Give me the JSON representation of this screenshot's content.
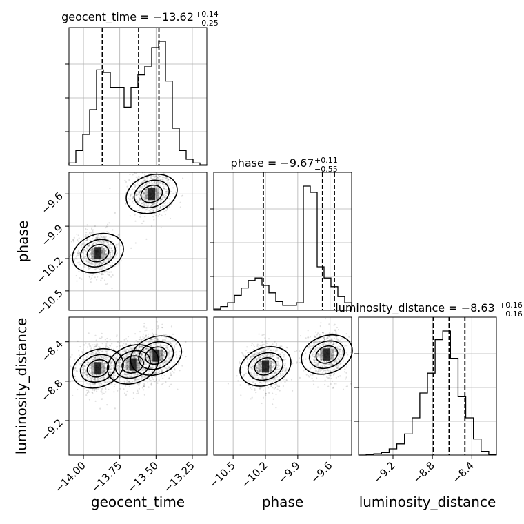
{
  "chart_data": {
    "type": "corner",
    "parameters": [
      {
        "name": "geocent_time",
        "title_main": "geocent_time = −13.62",
        "title_sup": "+0.14",
        "title_sub": "−0.25",
        "range": [
          -14.1,
          -13.15
        ],
        "ticks": [
          "−14.00",
          "−13.75",
          "−13.50",
          "−13.25"
        ],
        "tick_values": [
          -14.0,
          -13.75,
          -13.5,
          -13.25
        ],
        "quantiles": [
          -13.87,
          -13.62,
          -13.48
        ],
        "histogram": [
          0.02,
          0.12,
          0.25,
          0.45,
          0.77,
          0.75,
          0.63,
          0.63,
          0.47,
          0.63,
          0.73,
          0.8,
          0.95,
          1.0,
          0.68,
          0.3,
          0.12,
          0.05,
          0.02,
          0.005
        ]
      },
      {
        "name": "phase",
        "title_main": "phase = −9.67",
        "title_sup": "+0.11",
        "title_sub": "−0.55",
        "range": [
          -10.68,
          -9.4
        ],
        "ticks": [
          "−10.5",
          "−10.2",
          "−9.9",
          "−9.6"
        ],
        "tick_values": [
          -10.5,
          -10.2,
          -9.9,
          -9.6
        ],
        "quantiles": [
          -10.22,
          -9.67,
          -9.56
        ],
        "histogram": [
          0.01,
          0.03,
          0.06,
          0.12,
          0.18,
          0.24,
          0.26,
          0.2,
          0.14,
          0.07,
          0.04,
          0.04,
          0.06,
          1.0,
          0.95,
          0.35,
          0.26,
          0.19,
          0.11,
          0.06
        ]
      },
      {
        "name": "luminosity_distance",
        "title_main": "luminosity_distance = −8.63",
        "title_sup": "+0.16",
        "title_sub": "−0.16",
        "range": [
          -9.55,
          -8.15
        ],
        "ticks": [
          "−9.2",
          "−8.8",
          "−8.4"
        ],
        "tick_values": [
          -9.2,
          -8.8,
          -8.4
        ],
        "quantiles": [
          -8.79,
          -8.63,
          -8.47
        ],
        "histogram": [
          0.0,
          0.005,
          0.01,
          0.02,
          0.05,
          0.09,
          0.17,
          0.3,
          0.5,
          0.66,
          0.93,
          1.0,
          0.78,
          0.47,
          0.3,
          0.13,
          0.03,
          0.005
        ]
      }
    ],
    "pairs": [
      {
        "x": "geocent_time",
        "y": "phase",
        "modes": [
          [
            -13.53,
            -9.6
          ],
          [
            -13.9,
            -10.15
          ]
        ]
      },
      {
        "x": "geocent_time",
        "y": "luminosity_distance",
        "modes": [
          [
            -13.5,
            -8.54
          ],
          [
            -13.66,
            -8.63
          ],
          [
            -13.9,
            -8.67
          ]
        ]
      },
      {
        "x": "phase",
        "y": "luminosity_distance",
        "modes": [
          [
            -10.2,
            -8.65
          ],
          [
            -9.63,
            -8.53
          ]
        ]
      }
    ]
  }
}
